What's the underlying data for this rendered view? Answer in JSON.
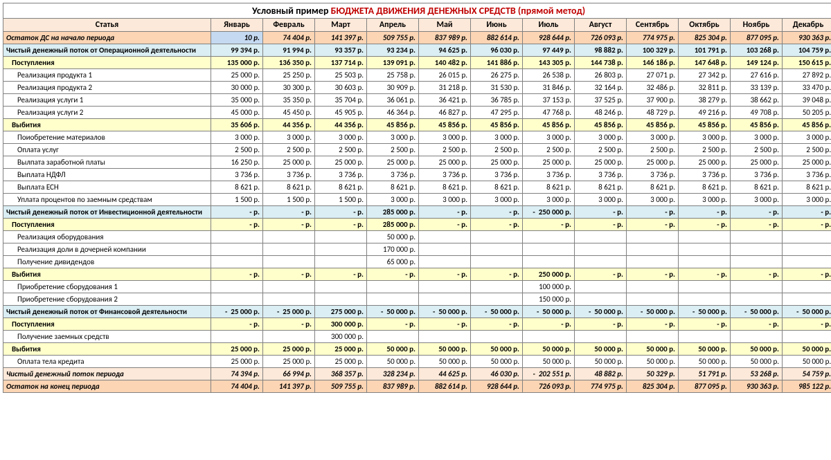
{
  "title_prefix": "Условный пример ",
  "title_main": "БЮДЖЕТА ДВИЖЕНИЯ ДЕНЕЖНЫХ СРЕДСТВ (прямой метод)",
  "columns": [
    "Статья",
    "Январь",
    "Февраль",
    "Март",
    "Апрель",
    "Май",
    "Июнь",
    "Июль",
    "Август",
    "Сентябрь",
    "Октябрь",
    "Ноябрь",
    "Декабрь"
  ],
  "currency_suffix": " р.",
  "dash": "-",
  "colors": {
    "title_red": "#c00000",
    "bg_orange_strong": "#fcd5b4",
    "bg_orange_light": "#fde9d9",
    "bg_yellow": "#ffffcc",
    "bg_blue": "#daeef3",
    "bg_start_cell": "#c5d9f1",
    "border": "#808080"
  },
  "rows": [
    {
      "label": "Остаток ДС на начало периода",
      "style": "orange-strong",
      "bold": true,
      "italic": true,
      "indent": 0,
      "first_special": true,
      "vals": [
        "10",
        "74 404",
        "141 397",
        "509 755",
        "837 989",
        "882 614",
        "928 644",
        "726 093",
        "774 975",
        "825 304",
        "877 095",
        "930 363"
      ]
    },
    {
      "label": "Чистый денежный поток от Операционной деятельности",
      "style": "blue",
      "bold": true,
      "indent": 0,
      "vals": [
        "99 394",
        "91 994",
        "93 357",
        "93 234",
        "94 625",
        "96 030",
        "97 449",
        "98 882",
        "100 329",
        "101 791",
        "103 268",
        "104 759"
      ]
    },
    {
      "label": "Поступления",
      "style": "yellow",
      "bold": true,
      "indent": 1,
      "vals": [
        "135 000",
        "136 350",
        "137 714",
        "139 091",
        "140 482",
        "141 886",
        "143 305",
        "144 738",
        "146 186",
        "147 648",
        "149 124",
        "150 615"
      ]
    },
    {
      "label": "Реализация продукта 1",
      "style": "white",
      "indent": 2,
      "vals": [
        "25 000",
        "25 250",
        "25 503",
        "25 758",
        "26 015",
        "26 275",
        "26 538",
        "26 803",
        "27 071",
        "27 342",
        "27 616",
        "27 892"
      ]
    },
    {
      "label": "Реализация продукта 2",
      "style": "white",
      "indent": 2,
      "vals": [
        "30 000",
        "30 300",
        "30 603",
        "30 909",
        "31 218",
        "31 530",
        "31 846",
        "32 164",
        "32 486",
        "32 811",
        "33 139",
        "33 470"
      ]
    },
    {
      "label": "Реализация услуги 1",
      "style": "white",
      "indent": 2,
      "vals": [
        "35 000",
        "35 350",
        "35 704",
        "36 061",
        "36 421",
        "36 785",
        "37 153",
        "37 525",
        "37 900",
        "38 279",
        "38 662",
        "39 048"
      ]
    },
    {
      "label": "Реализация услуги 2",
      "style": "white",
      "indent": 2,
      "vals": [
        "45 000",
        "45 450",
        "45 905",
        "46 364",
        "46 827",
        "47 295",
        "47 768",
        "48 246",
        "48 729",
        "49 216",
        "49 708",
        "50 205"
      ]
    },
    {
      "label": "Выбития",
      "style": "yellow",
      "bold": true,
      "indent": 1,
      "vals": [
        "35 606",
        "44 356",
        "44 356",
        "45 856",
        "45 856",
        "45 856",
        "45 856",
        "45 856",
        "45 856",
        "45 856",
        "45 856",
        "45 856"
      ]
    },
    {
      "label": "Поиобретение материалов",
      "style": "white",
      "indent": 2,
      "vals": [
        "3 000",
        "3 000",
        "3 000",
        "3 000",
        "3 000",
        "3 000",
        "3 000",
        "3 000",
        "3 000",
        "3 000",
        "3 000",
        "3 000"
      ]
    },
    {
      "label": "Оплата услуг",
      "style": "white",
      "indent": 2,
      "vals": [
        "2 500",
        "2 500",
        "2 500",
        "2 500",
        "2 500",
        "2 500",
        "2 500",
        "2 500",
        "2 500",
        "2 500",
        "2 500",
        "2 500"
      ]
    },
    {
      "label": "Вылпата заработной платы",
      "style": "white",
      "indent": 2,
      "vals": [
        "16 250",
        "25 000",
        "25 000",
        "25 000",
        "25 000",
        "25 000",
        "25 000",
        "25 000",
        "25 000",
        "25 000",
        "25 000",
        "25 000"
      ]
    },
    {
      "label": "Выплата НДФЛ",
      "style": "white",
      "indent": 2,
      "vals": [
        "3 736",
        "3 736",
        "3 736",
        "3 736",
        "3 736",
        "3 736",
        "3 736",
        "3 736",
        "3 736",
        "3 736",
        "3 736",
        "3 736"
      ]
    },
    {
      "label": "Выплата ЕСН",
      "style": "white",
      "indent": 2,
      "vals": [
        "8 621",
        "8 621",
        "8 621",
        "8 621",
        "8 621",
        "8 621",
        "8 621",
        "8 621",
        "8 621",
        "8 621",
        "8 621",
        "8 621"
      ]
    },
    {
      "label": "Уплата процентов по заемным средствам",
      "style": "white",
      "indent": 2,
      "vals": [
        "1 500",
        "1 500",
        "1 500",
        "3 000",
        "3 000",
        "3 000",
        "3 000",
        "3 000",
        "3 000",
        "3 000",
        "3 000",
        "3 000"
      ]
    },
    {
      "label": "Чистый денежный поток от Инвестиционной деятельности",
      "style": "blue",
      "bold": true,
      "indent": 0,
      "vals": [
        "-",
        "-",
        "-",
        "285 000",
        "-",
        "-",
        {
          "v": "250 000",
          "neg": true
        },
        "-",
        "-",
        "-",
        "-",
        "-"
      ]
    },
    {
      "label": "Поступления",
      "style": "yellow",
      "bold": true,
      "indent": 1,
      "vals": [
        "-",
        "-",
        "-",
        "285 000",
        "-",
        "-",
        "-",
        "-",
        "-",
        "-",
        "-",
        "-"
      ]
    },
    {
      "label": "Реализация оборудования",
      "style": "white",
      "indent": 2,
      "vals": [
        "",
        "",
        "",
        "50 000",
        "",
        "",
        "",
        "",
        "",
        "",
        "",
        ""
      ]
    },
    {
      "label": "Реализация доли в дочерней компании",
      "style": "white",
      "indent": 2,
      "vals": [
        "",
        "",
        "",
        "170 000",
        "",
        "",
        "",
        "",
        "",
        "",
        "",
        ""
      ]
    },
    {
      "label": "Получение дивидендов",
      "style": "white",
      "indent": 2,
      "vals": [
        "",
        "",
        "",
        "65 000",
        "",
        "",
        "",
        "",
        "",
        "",
        "",
        ""
      ]
    },
    {
      "label": "Выбития",
      "style": "yellow",
      "bold": true,
      "indent": 1,
      "vals": [
        "-",
        "-",
        "-",
        "-",
        "-",
        "-",
        "250 000",
        "-",
        "-",
        "-",
        "-",
        "-"
      ]
    },
    {
      "label": "Приобретение сборудования 1",
      "style": "white",
      "indent": 2,
      "vals": [
        "",
        "",
        "",
        "",
        "",
        "",
        "100 000",
        "",
        "",
        "",
        "",
        ""
      ]
    },
    {
      "label": "Приобретение сборудования 2",
      "style": "white",
      "indent": 2,
      "vals": [
        "",
        "",
        "",
        "",
        "",
        "",
        "150 000",
        "",
        "",
        "",
        "",
        ""
      ]
    },
    {
      "label": "Чистый денежный поток от Финансовой деятельности",
      "style": "blue",
      "bold": true,
      "indent": 0,
      "vals": [
        {
          "v": "25 000",
          "neg": true
        },
        {
          "v": "25 000",
          "neg": true
        },
        "275 000",
        {
          "v": "50 000",
          "neg": true
        },
        {
          "v": "50 000",
          "neg": true
        },
        {
          "v": "50 000",
          "neg": true
        },
        {
          "v": "50 000",
          "neg": true
        },
        {
          "v": "50 000",
          "neg": true
        },
        {
          "v": "50 000",
          "neg": true
        },
        {
          "v": "50 000",
          "neg": true
        },
        {
          "v": "50 000",
          "neg": true
        },
        {
          "v": "50 000",
          "neg": true
        }
      ]
    },
    {
      "label": "Поступления",
      "style": "yellow",
      "bold": true,
      "indent": 1,
      "vals": [
        "-",
        "-",
        "300 000",
        "-",
        "-",
        "-",
        "-",
        "-",
        "-",
        "-",
        "-",
        "-"
      ]
    },
    {
      "label": "Получение заемных средств",
      "style": "white",
      "indent": 2,
      "vals": [
        "",
        "",
        "300 000",
        "",
        "",
        "",
        "",
        "",
        "",
        "",
        "",
        ""
      ]
    },
    {
      "label": "Выбития",
      "style": "yellow",
      "bold": true,
      "indent": 1,
      "vals": [
        "25 000",
        "25 000",
        "25 000",
        "50 000",
        "50 000",
        "50 000",
        "50 000",
        "50 000",
        "50 000",
        "50 000",
        "50 000",
        "50 000"
      ]
    },
    {
      "label": "Оплата тела кредита",
      "style": "white",
      "indent": 2,
      "vals": [
        "25 000",
        "25 000",
        "25 000",
        "50 000",
        "50 000",
        "50 000",
        "50 000",
        "50 000",
        "50 000",
        "50 000",
        "50 000",
        "50 000"
      ]
    },
    {
      "label": "Чистый денежный поток периода",
      "style": "orange-light",
      "bold": true,
      "italic": true,
      "indent": 0,
      "vals": [
        "74 394",
        "66 994",
        "368 357",
        "328 234",
        "44 625",
        "46 030",
        {
          "v": "202 551",
          "neg": true
        },
        "48 882",
        "50 329",
        "51 791",
        "53 268",
        "54 759"
      ]
    },
    {
      "label": "Остаток на конец периода",
      "style": "orange-strong",
      "bold": true,
      "italic": true,
      "indent": 0,
      "vals": [
        "74 404",
        "141 397",
        "509 755",
        "837 989",
        "882 614",
        "928 644",
        "726 093",
        "774 975",
        "825 304",
        "877 095",
        "930 363",
        "985 122"
      ]
    }
  ]
}
